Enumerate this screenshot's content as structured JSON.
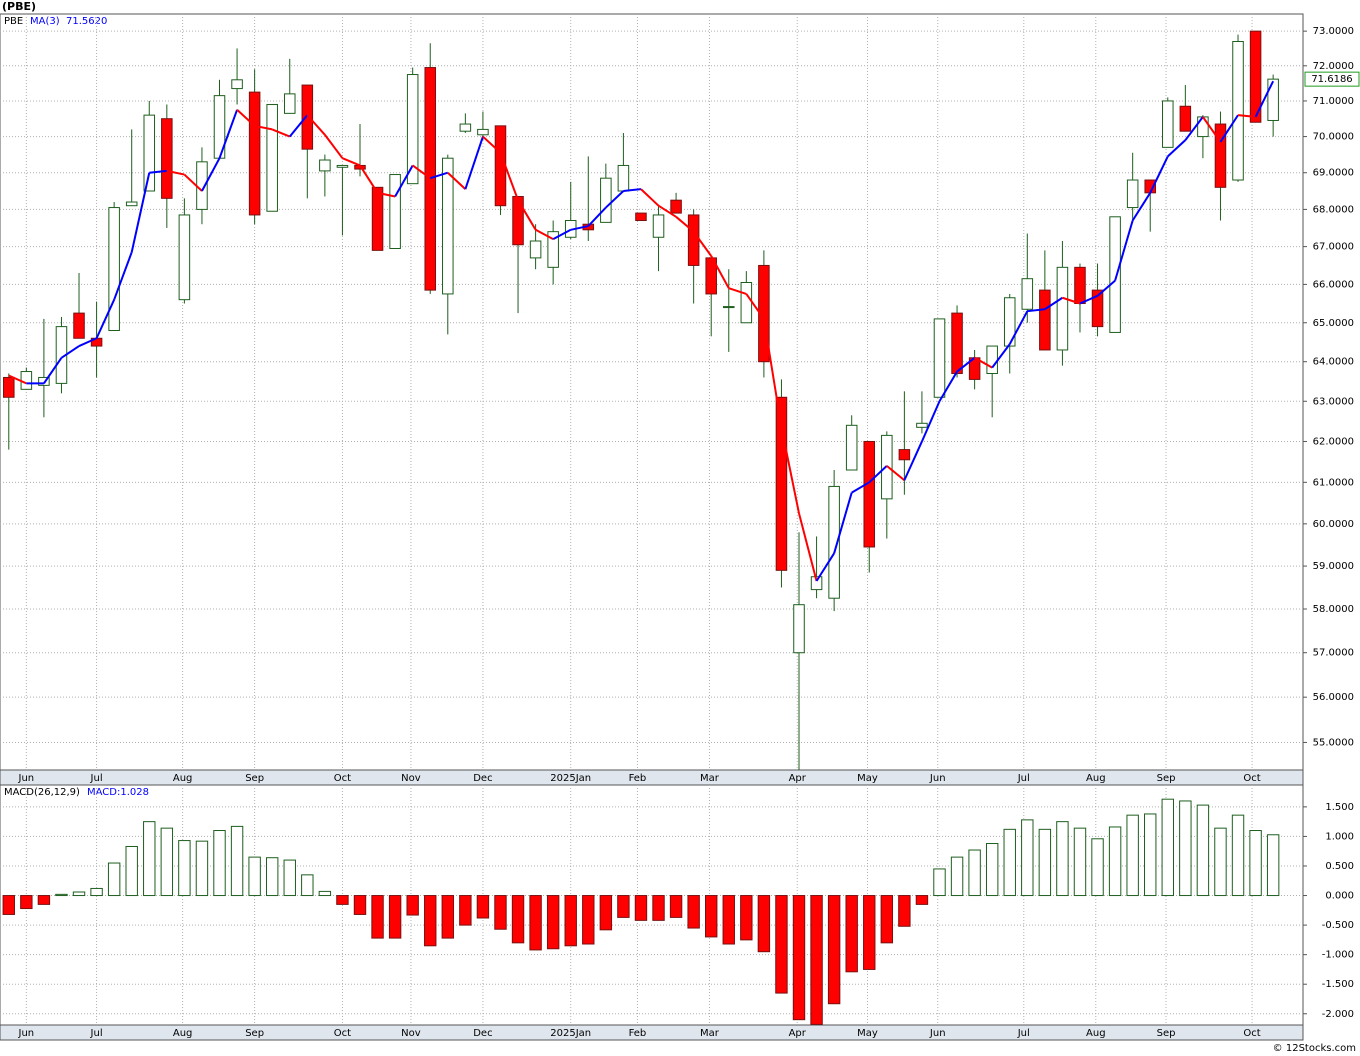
{
  "chart_data": [
    {
      "type": "candlestick",
      "title": "(PBE)",
      "name": "PBE",
      "ma_name": "MA(3)",
      "ma_label": "71.5620",
      "last_label": "71.6186",
      "up_color": "#1e5e1e",
      "down_color": "#ff0000",
      "ma_up_color": "#0000ff",
      "ma_down_color": "#ff0000",
      "log_scale": true,
      "grid": true,
      "xlim": [
        -0.5,
        73.7
      ],
      "ylim": [
        54.4,
        73.5
      ],
      "xlabels": [
        {
          "value": 1,
          "label": "Jun"
        },
        {
          "value": 5,
          "label": "Jul"
        },
        {
          "value": 9.9,
          "label": "Aug"
        },
        {
          "value": 14,
          "label": "Sep"
        },
        {
          "value": 19,
          "label": "Oct"
        },
        {
          "value": 22.9,
          "label": "Nov"
        },
        {
          "value": 27,
          "label": "Dec"
        },
        {
          "value": 32,
          "label": "2025Jan"
        },
        {
          "value": 35.8,
          "label": "Feb"
        },
        {
          "value": 39.9,
          "label": "Mar"
        },
        {
          "value": 44.9,
          "label": "Apr"
        },
        {
          "value": 48.9,
          "label": "May"
        },
        {
          "value": 52.9,
          "label": "Jun"
        },
        {
          "value": 57.8,
          "label": "Jul"
        },
        {
          "value": 61.9,
          "label": "Aug"
        },
        {
          "value": 65.9,
          "label": "Sep"
        },
        {
          "value": 70.8,
          "label": "Oct"
        }
      ],
      "yticks": [
        {
          "value": 55,
          "label": "55.0000"
        },
        {
          "value": 56,
          "label": "56.0000"
        },
        {
          "value": 57,
          "label": "57.0000"
        },
        {
          "value": 58,
          "label": "58.0000"
        },
        {
          "value": 59,
          "label": "59.0000"
        },
        {
          "value": 60,
          "label": "60.0000"
        },
        {
          "value": 61,
          "label": "61.0000"
        },
        {
          "value": 62,
          "label": "62.0000"
        },
        {
          "value": 63,
          "label": "63.0000"
        },
        {
          "value": 64,
          "label": "64.0000"
        },
        {
          "value": 65,
          "label": "65.0000"
        },
        {
          "value": 66,
          "label": "66.0000"
        },
        {
          "value": 67,
          "label": "67.0000"
        },
        {
          "value": 68,
          "label": "68.0000"
        },
        {
          "value": 69,
          "label": "69.0000"
        },
        {
          "value": 70,
          "label": "70.0000"
        },
        {
          "value": 71,
          "label": "71.0000"
        },
        {
          "value": 72,
          "label": "72.0000"
        },
        {
          "value": 73,
          "label": "73.0000"
        }
      ],
      "open": [
        63.6,
        63.3,
        63.4,
        63.45,
        65.25,
        64.6,
        64.8,
        68.1,
        68.5,
        70.5,
        65.6,
        68.0,
        69.4,
        71.35,
        71.25,
        67.95,
        70.65,
        71.45,
        69.05,
        69.15,
        69.2,
        68.6,
        66.95,
        68.7,
        71.95,
        65.75,
        70.15,
        70.05,
        70.3,
        68.35,
        66.7,
        66.45,
        67.25,
        67.6,
        67.65,
        68.5,
        67.9,
        67.25,
        68.25,
        67.85,
        66.7,
        65.4,
        65.0,
        66.5,
        63.1,
        57.0,
        58.45,
        58.25,
        61.3,
        62.0,
        60.6,
        61.8,
        62.35,
        63.1,
        65.25,
        64.1,
        63.7,
        64.4,
        65.35,
        65.85,
        64.3,
        66.45,
        65.85,
        64.75,
        68.05,
        68.8,
        69.7,
        70.85,
        70.0,
        70.35,
        68.8,
        73.0,
        70.45
      ],
      "high": [
        63.7,
        63.85,
        65.1,
        65.15,
        66.3,
        65.55,
        68.2,
        70.2,
        71.0,
        70.9,
        68.3,
        69.7,
        71.6,
        72.5,
        71.9,
        70.9,
        72.2,
        71.45,
        69.5,
        69.2,
        70.35,
        68.6,
        68.95,
        71.95,
        72.65,
        69.5,
        70.65,
        70.7,
        70.3,
        68.35,
        67.6,
        67.7,
        68.75,
        69.45,
        69.25,
        70.1,
        67.9,
        68.1,
        68.45,
        68.0,
        66.7,
        66.4,
        66.35,
        66.9,
        63.55,
        59.8,
        59.7,
        61.3,
        62.65,
        62.0,
        62.25,
        63.25,
        63.25,
        65.1,
        65.45,
        64.3,
        64.4,
        65.75,
        67.35,
        66.9,
        67.15,
        66.55,
        66.55,
        67.8,
        69.55,
        68.8,
        71.1,
        71.45,
        70.6,
        70.7,
        72.9,
        73.0,
        71.75
      ],
      "low": [
        61.8,
        63.3,
        62.6,
        63.2,
        64.6,
        63.6,
        64.8,
        68.1,
        68.5,
        67.5,
        65.5,
        67.6,
        69.4,
        70.9,
        67.6,
        67.95,
        70.65,
        68.3,
        68.35,
        67.3,
        68.9,
        66.9,
        66.95,
        68.7,
        65.75,
        64.7,
        70.1,
        69.9,
        67.85,
        65.25,
        66.4,
        66.0,
        67.2,
        67.15,
        67.65,
        68.5,
        67.7,
        66.35,
        67.9,
        65.5,
        64.65,
        64.25,
        65.0,
        63.6,
        58.5,
        54.3,
        58.25,
        57.95,
        61.3,
        58.85,
        59.65,
        60.7,
        62.2,
        63.1,
        63.6,
        63.3,
        62.6,
        63.7,
        65.0,
        64.3,
        63.9,
        64.75,
        64.65,
        64.75,
        67.65,
        67.4,
        69.7,
        70.15,
        69.4,
        67.7,
        68.75,
        70.4,
        70.0
      ],
      "close": [
        63.1,
        63.75,
        63.6,
        64.9,
        64.6,
        64.4,
        68.05,
        68.2,
        70.6,
        68.3,
        67.85,
        69.3,
        71.15,
        71.6,
        67.85,
        70.9,
        71.2,
        69.65,
        69.35,
        69.2,
        69.1,
        66.9,
        68.95,
        71.75,
        65.85,
        69.4,
        70.35,
        70.2,
        68.1,
        67.05,
        67.15,
        67.4,
        67.7,
        67.45,
        68.85,
        69.2,
        67.7,
        67.85,
        67.9,
        66.5,
        65.75,
        65.42,
        66.05,
        64.0,
        58.9,
        58.1,
        58.75,
        60.9,
        62.4,
        59.45,
        62.15,
        61.55,
        62.45,
        65.1,
        63.7,
        63.55,
        64.4,
        65.65,
        66.15,
        64.3,
        66.45,
        65.5,
        64.9,
        67.8,
        68.8,
        68.45,
        71.0,
        70.15,
        70.55,
        68.6,
        72.7,
        70.4,
        71.6186
      ],
      "ma": [
        63.65,
        63.45,
        63.45,
        64.1,
        64.4,
        64.6,
        65.6,
        66.85,
        69.0,
        69.05,
        68.95,
        68.5,
        69.4,
        70.75,
        70.3,
        70.2,
        70.0,
        70.6,
        70.05,
        69.4,
        69.2,
        68.45,
        68.35,
        69.2,
        68.85,
        69.0,
        68.55,
        70.0,
        69.55,
        68.25,
        67.45,
        67.2,
        67.45,
        67.55,
        68.05,
        68.5,
        68.55,
        68.1,
        67.8,
        67.4,
        66.75,
        65.9,
        65.75,
        65.1,
        62.35,
        60.25,
        58.65,
        59.3,
        60.75,
        61.0,
        61.4,
        61.05,
        62.0,
        63.0,
        63.75,
        64.1,
        63.85,
        64.45,
        65.3,
        65.35,
        65.65,
        65.5,
        65.7,
        66.1,
        67.7,
        68.45,
        69.45,
        69.9,
        70.55,
        69.85,
        70.6,
        70.55,
        71.562
      ]
    },
    {
      "type": "bar",
      "name": "MACD(26,12,9)",
      "value_label": "MACD:1.028",
      "up_color": "#1e5e1e",
      "down_color": "#ff0000",
      "grid": true,
      "xlim": [
        -0.5,
        73.7
      ],
      "ylim": [
        -2.19,
        1.87
      ],
      "xlabels": [
        {
          "value": 1,
          "label": "Jun"
        },
        {
          "value": 5,
          "label": "Jul"
        },
        {
          "value": 9.9,
          "label": "Aug"
        },
        {
          "value": 14,
          "label": "Sep"
        },
        {
          "value": 19,
          "label": "Oct"
        },
        {
          "value": 22.9,
          "label": "Nov"
        },
        {
          "value": 27,
          "label": "Dec"
        },
        {
          "value": 32,
          "label": "2025Jan"
        },
        {
          "value": 35.8,
          "label": "Feb"
        },
        {
          "value": 39.9,
          "label": "Mar"
        },
        {
          "value": 44.9,
          "label": "Apr"
        },
        {
          "value": 48.9,
          "label": "May"
        },
        {
          "value": 52.9,
          "label": "Jun"
        },
        {
          "value": 57.8,
          "label": "Jul"
        },
        {
          "value": 61.9,
          "label": "Aug"
        },
        {
          "value": 65.9,
          "label": "Sep"
        },
        {
          "value": 70.8,
          "label": "Oct"
        }
      ],
      "yticks": [
        {
          "value": -2,
          "label": "-2.000"
        },
        {
          "value": -1.5,
          "label": "-1.500"
        },
        {
          "value": -1,
          "label": "-1.000"
        },
        {
          "value": -0.5,
          "label": "-0.500"
        },
        {
          "value": 0,
          "label": "0.000"
        },
        {
          "value": 0.5,
          "label": "0.500"
        },
        {
          "value": 1,
          "label": "1.000"
        },
        {
          "value": 1.5,
          "label": "1.500"
        }
      ],
      "values": [
        -0.32,
        -0.22,
        -0.15,
        0.02,
        0.06,
        0.12,
        0.55,
        0.83,
        1.25,
        1.14,
        0.93,
        0.92,
        1.1,
        1.17,
        0.65,
        0.64,
        0.6,
        0.35,
        0.07,
        -0.15,
        -0.32,
        -0.72,
        -0.72,
        -0.33,
        -0.85,
        -0.72,
        -0.5,
        -0.38,
        -0.57,
        -0.8,
        -0.92,
        -0.9,
        -0.85,
        -0.82,
        -0.58,
        -0.37,
        -0.42,
        -0.42,
        -0.37,
        -0.55,
        -0.7,
        -0.82,
        -0.75,
        -0.95,
        -1.65,
        -2.1,
        -2.18,
        -1.83,
        -1.29,
        -1.25,
        -0.8,
        -0.52,
        -0.15,
        0.45,
        0.65,
        0.77,
        0.88,
        1.12,
        1.28,
        1.12,
        1.25,
        1.14,
        0.96,
        1.16,
        1.36,
        1.38,
        1.63,
        1.6,
        1.53,
        1.14,
        1.36,
        1.1,
        1.028
      ]
    }
  ],
  "footer": "© 12Stocks.com"
}
